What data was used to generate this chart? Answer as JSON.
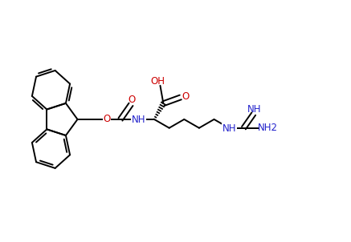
{
  "bg": "#ffffff",
  "figsize": [
    4.37,
    3.02
  ],
  "dpi": 100,
  "lw": 1.4,
  "oc": "#cc0000",
  "nc": "#2222cc",
  "bc": "#000000",
  "xlim": [
    0,
    10.5
  ],
  "ylim": [
    0.5,
    7.0
  ]
}
